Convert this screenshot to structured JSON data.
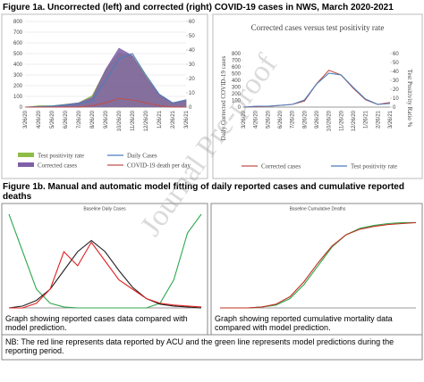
{
  "headings": [
    "Figure 1a. Uncorrected (left) and corrected (right) COVID-19 cases in NWS, March 2020-2021",
    "Figure 1b. Manual and automatic model fitting of daily reported cases and cumulative reported deaths"
  ],
  "note": "NB: The red line represents data reported by ACU and the green line represents model predictions during the reporting period.",
  "watermark": "Journal Pre-proof",
  "chart_data": [
    {
      "type": "line",
      "categories": [
        "3/26/20",
        "4/26/20",
        "5/26/20",
        "6/26/20",
        "7/26/20",
        "8/26/20",
        "9/26/20",
        "10/26/20",
        "11/26/20",
        "12/26/20",
        "1/26/21",
        "2/26/21",
        "3/26/21"
      ],
      "ylim": [
        0,
        800
      ],
      "yticks": [
        0,
        100,
        200,
        300,
        400,
        500,
        600,
        700,
        800
      ],
      "y2lim": [
        0,
        60
      ],
      "y2ticks": [
        0,
        10,
        20,
        30,
        40,
        50,
        60
      ],
      "grid": true,
      "legend": "bottom",
      "series": [
        {
          "name": "Test positivity rate",
          "color": "#8fbc45",
          "style": "area",
          "axis": "y2",
          "values": [
            0,
            1,
            1,
            2,
            3,
            8,
            26,
            38,
            36,
            22,
            9,
            3,
            4
          ]
        },
        {
          "name": "Daily Cases",
          "color": "#4a7ebb",
          "style": "line",
          "values": [
            0,
            5,
            10,
            20,
            30,
            60,
            250,
            450,
            500,
            300,
            120,
            40,
            60
          ]
        },
        {
          "name": "Corrected cases",
          "color": "#7f5fa8",
          "style": "area",
          "values": [
            0,
            5,
            10,
            25,
            40,
            90,
            350,
            550,
            480,
            280,
            110,
            40,
            70
          ]
        },
        {
          "name": "COVID-19 death per day",
          "color": "#c0504d",
          "style": "line",
          "axis": "y2",
          "values": [
            0,
            0,
            0,
            0,
            0,
            1,
            3,
            6,
            5,
            3,
            1,
            0,
            0
          ]
        }
      ]
    },
    {
      "type": "line",
      "title": "Corrected cases versus test positivity rate",
      "ylabel": "Daily Corrected COVID-19 cases",
      "y2label": "Test Positivity Ratio %",
      "categories": [
        "3/26/20",
        "4/26/20",
        "5/26/20",
        "6/26/20",
        "7/26/20",
        "8/26/20",
        "9/26/20",
        "10/26/20",
        "11/26/20",
        "12/26/20",
        "1/26/21",
        "2/26/21",
        "3/26/21"
      ],
      "ylim": [
        0,
        800
      ],
      "yticks": [
        0,
        100,
        200,
        300,
        400,
        500,
        600,
        700,
        800
      ],
      "y2lim": [
        0,
        60
      ],
      "y2ticks": [
        0,
        10,
        20,
        30,
        40,
        50,
        60
      ],
      "grid": false,
      "legend": "bottom",
      "series": [
        {
          "name": "Corrected cases",
          "color": "#c0504d",
          "style": "line",
          "values": [
            0,
            5,
            10,
            25,
            40,
            90,
            350,
            550,
            480,
            280,
            110,
            40,
            70
          ]
        },
        {
          "name": "Test positivity rate",
          "color": "#4a7ebb",
          "style": "line",
          "axis": "y2",
          "values": [
            0,
            1,
            1,
            2,
            3,
            8,
            26,
            38,
            36,
            22,
            9,
            3,
            4
          ]
        }
      ]
    },
    {
      "type": "line",
      "title": "Baseline Daily Cases",
      "caption": "Graph showing reported cases data compared with model prediction.",
      "categories": [
        null,
        null,
        null,
        null,
        null,
        null,
        null,
        null,
        null,
        null,
        null,
        null,
        null,
        null,
        null
      ],
      "ylim": [
        0,
        100
      ],
      "series": [
        {
          "color": "#2fa84f",
          "style": "line",
          "values": [
            100,
            60,
            20,
            5,
            1,
            0,
            0,
            0,
            0,
            0,
            0,
            5,
            30,
            80,
            100
          ]
        },
        {
          "color": "#222222",
          "style": "line",
          "values": [
            0,
            2,
            8,
            20,
            40,
            60,
            72,
            60,
            40,
            22,
            10,
            4,
            2,
            1,
            0
          ]
        },
        {
          "color": "#e02020",
          "style": "line",
          "values": [
            0,
            0,
            5,
            20,
            60,
            45,
            70,
            50,
            30,
            20,
            10,
            5,
            3,
            2,
            1
          ]
        }
      ]
    },
    {
      "type": "line",
      "title": "Baseline Cumulative Deaths",
      "caption": "Graph showing reported cumulative mortality data compared with model prediction.",
      "categories": [
        null,
        null,
        null,
        null,
        null,
        null,
        null,
        null,
        null,
        null,
        null,
        null,
        null,
        null,
        null
      ],
      "ylim": [
        0,
        100
      ],
      "series": [
        {
          "color": "#2fa84f",
          "style": "line",
          "values": [
            0,
            0,
            0,
            1,
            3,
            10,
            25,
            45,
            65,
            78,
            85,
            88,
            90,
            91,
            91
          ]
        },
        {
          "color": "#c03020",
          "style": "line",
          "values": [
            0,
            0,
            0,
            1,
            4,
            12,
            28,
            48,
            66,
            78,
            84,
            87,
            89,
            90,
            91
          ]
        }
      ]
    }
  ]
}
